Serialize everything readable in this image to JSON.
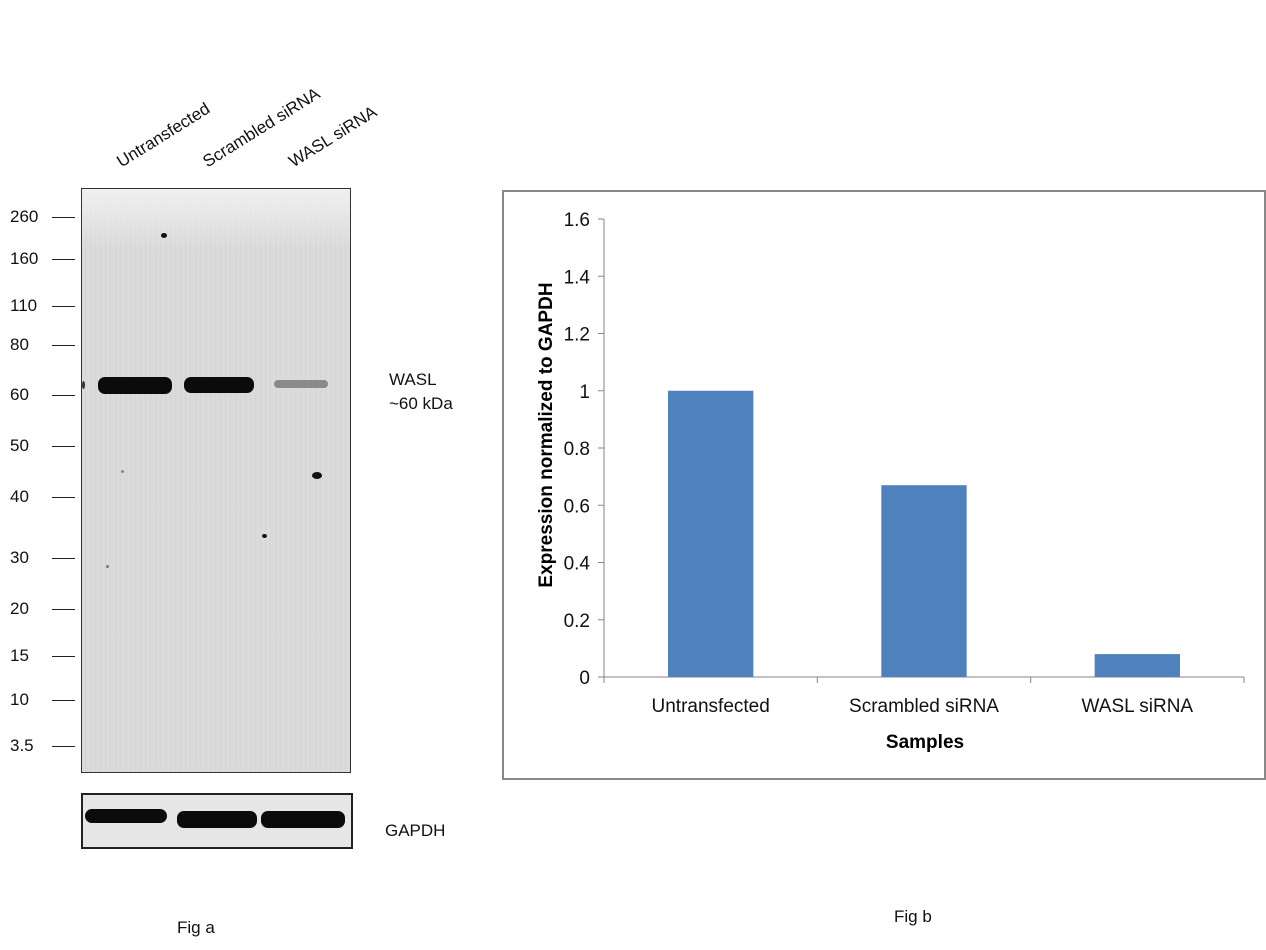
{
  "fig_a": {
    "lane_labels": [
      "Untransfected",
      "Scrambled siRNA",
      "WASL  siRNA"
    ],
    "markers": [
      "260",
      "160",
      "110",
      "80",
      "60",
      "50",
      "40",
      "30",
      "20",
      "15",
      "10",
      "3.5"
    ],
    "band_label_line1": "WASL",
    "band_label_line2": "~60 kDa",
    "loading_control_label": "GAPDH",
    "caption": "Fig a"
  },
  "fig_b": {
    "caption": "Fig b"
  },
  "chart_data": {
    "type": "bar",
    "categories": [
      "Untransfected",
      "Scrambled siRNA",
      "WASL siRNA"
    ],
    "values": [
      1.0,
      0.67,
      0.08
    ],
    "title": "",
    "xlabel": "Samples",
    "ylabel": "Expression normalized to GAPDH",
    "ylim": [
      0,
      1.6
    ],
    "yticks": [
      "0",
      "0.2",
      "0.4",
      "0.6",
      "0.8",
      "1",
      "1.2",
      "1.4",
      "1.6"
    ],
    "grid": false,
    "legend": "none",
    "bar_color": "#4f81bd"
  }
}
